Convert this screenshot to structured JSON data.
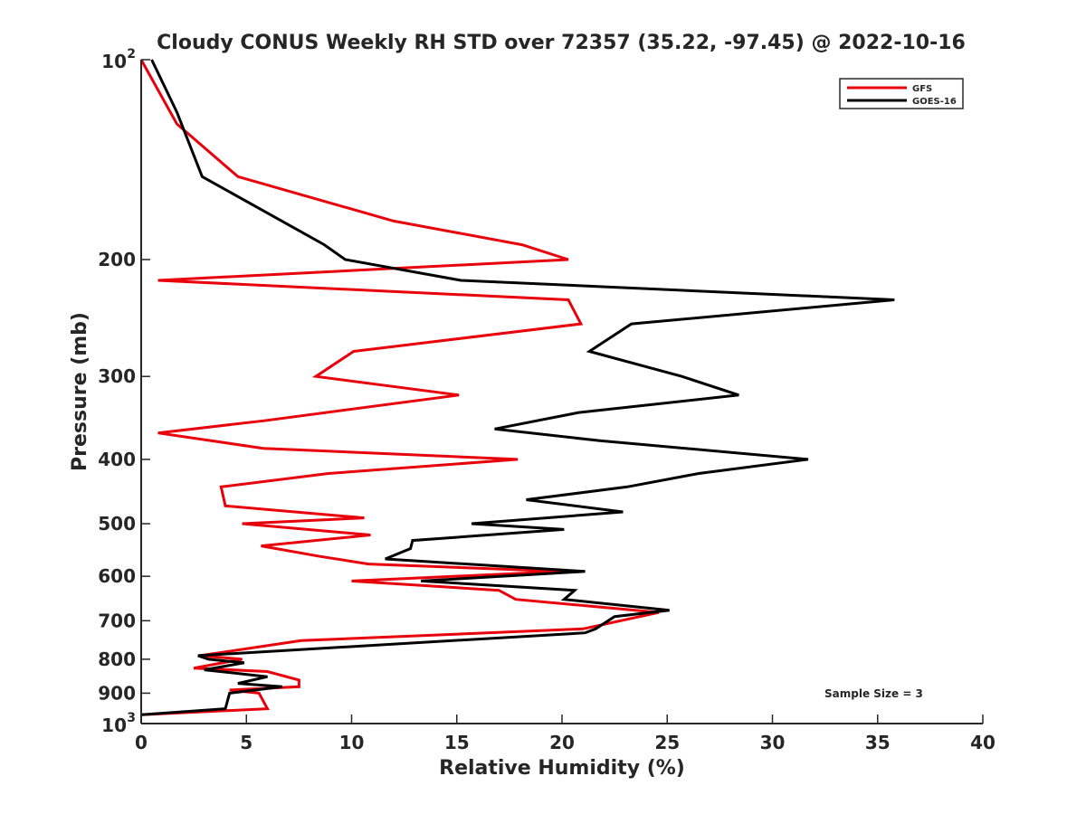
{
  "chart_data": {
    "type": "line",
    "title": "Cloudy CONUS Weekly RH STD over 72357 (35.22, -97.45) @ 2022-10-16",
    "xlabel": "Relative Humidity (%)",
    "ylabel": "Pressure (mb)",
    "xlim": [
      0,
      40
    ],
    "ylim": [
      100,
      1000
    ],
    "y_scale": "log",
    "y_reversed": true,
    "grid": false,
    "legend_position": "top-right",
    "annotation": "Sample Size = 3",
    "x_ticks": [
      "0",
      "5",
      "10",
      "15",
      "20",
      "25",
      "30",
      "35",
      "40"
    ],
    "y_ticks": [
      {
        "value": 100,
        "base": "10",
        "exp": "2"
      },
      {
        "value": 200,
        "label": "200"
      },
      {
        "value": 300,
        "label": "300"
      },
      {
        "value": 400,
        "label": "400"
      },
      {
        "value": 500,
        "label": "500"
      },
      {
        "value": 600,
        "label": "600"
      },
      {
        "value": 700,
        "label": "700"
      },
      {
        "value": 800,
        "label": "800"
      },
      {
        "value": 900,
        "label": "900"
      },
      {
        "value": 1000,
        "base": "10",
        "exp": "3"
      }
    ],
    "series": [
      {
        "name": "GFS",
        "color": "#e8000b",
        "points": [
          [
            0.0,
            100
          ],
          [
            1.7,
            125
          ],
          [
            4.6,
            150
          ],
          [
            12.0,
            175
          ],
          [
            18.1,
            190
          ],
          [
            20.3,
            200
          ],
          [
            0.8,
            215
          ],
          [
            20.3,
            230
          ],
          [
            20.9,
            250
          ],
          [
            10.1,
            275
          ],
          [
            8.3,
            300
          ],
          [
            15.1,
            320
          ],
          [
            5.8,
            350
          ],
          [
            0.8,
            365
          ],
          [
            5.8,
            385
          ],
          [
            17.9,
            400
          ],
          [
            8.9,
            420
          ],
          [
            3.8,
            440
          ],
          [
            4.0,
            470
          ],
          [
            10.6,
            490
          ],
          [
            4.8,
            500
          ],
          [
            10.9,
            520
          ],
          [
            5.7,
            540
          ],
          [
            8.5,
            560
          ],
          [
            10.8,
            575
          ],
          [
            20.0,
            590
          ],
          [
            10.0,
            610
          ],
          [
            17.0,
            630
          ],
          [
            17.8,
            650
          ],
          [
            24.6,
            680
          ],
          [
            21.0,
            720
          ],
          [
            7.6,
            750
          ],
          [
            2.8,
            790
          ],
          [
            4.8,
            800
          ],
          [
            2.5,
            825
          ],
          [
            6.0,
            835
          ],
          [
            7.5,
            860
          ],
          [
            7.5,
            880
          ],
          [
            4.2,
            890
          ],
          [
            5.6,
            900
          ],
          [
            6.0,
            950
          ],
          [
            0.0,
            970
          ]
        ]
      },
      {
        "name": "GOES-16",
        "color": "#000000",
        "points": [
          [
            0.5,
            100
          ],
          [
            1.7,
            120
          ],
          [
            2.9,
            150
          ],
          [
            8.7,
            190
          ],
          [
            9.7,
            200
          ],
          [
            15.2,
            215
          ],
          [
            35.8,
            230
          ],
          [
            23.3,
            250
          ],
          [
            21.3,
            275
          ],
          [
            25.7,
            300
          ],
          [
            28.4,
            320
          ],
          [
            20.8,
            340
          ],
          [
            16.8,
            360
          ],
          [
            21.8,
            375
          ],
          [
            31.7,
            400
          ],
          [
            26.5,
            420
          ],
          [
            23.1,
            440
          ],
          [
            18.3,
            460
          ],
          [
            22.9,
            480
          ],
          [
            15.7,
            500
          ],
          [
            20.1,
            510
          ],
          [
            12.9,
            530
          ],
          [
            12.8,
            545
          ],
          [
            11.6,
            565
          ],
          [
            21.1,
            590
          ],
          [
            13.3,
            610
          ],
          [
            20.6,
            630
          ],
          [
            20.1,
            650
          ],
          [
            25.1,
            675
          ],
          [
            22.5,
            690
          ],
          [
            21.6,
            720
          ],
          [
            21.1,
            730
          ],
          [
            2.7,
            790
          ],
          [
            3.2,
            800
          ],
          [
            4.9,
            810
          ],
          [
            3.0,
            830
          ],
          [
            6.0,
            850
          ],
          [
            4.6,
            870
          ],
          [
            6.7,
            880
          ],
          [
            4.2,
            900
          ],
          [
            4.0,
            950
          ],
          [
            0.0,
            970
          ]
        ]
      }
    ]
  }
}
